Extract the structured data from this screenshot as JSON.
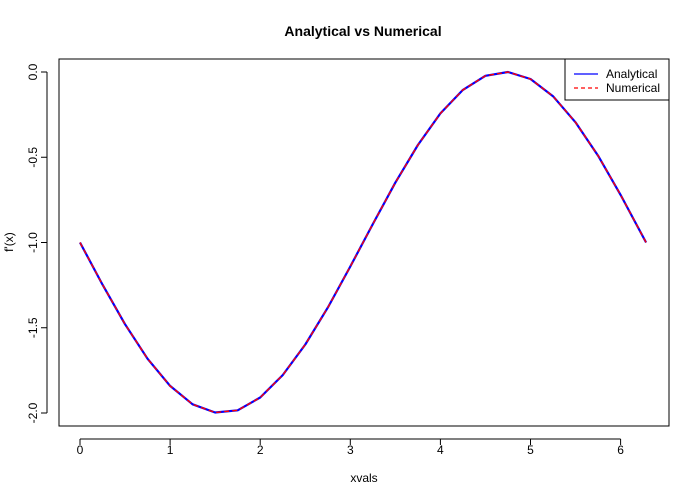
{
  "chart_data": {
    "type": "line",
    "title": "Analytical vs Numerical",
    "xlabel": "xvals",
    "ylabel": "f'(x)",
    "xlim": [
      0.0,
      6.283
    ],
    "ylim": [
      -2.0,
      0.0
    ],
    "x_ticks": [
      0,
      1,
      2,
      3,
      4,
      5,
      6
    ],
    "x_tick_labels": [
      "0",
      "1",
      "2",
      "3",
      "4",
      "5",
      "6"
    ],
    "y_ticks": [
      0.0,
      -0.5,
      -1.0,
      -1.5,
      -2.0
    ],
    "y_tick_labels": [
      "0.0",
      "-0.5",
      "-1.0",
      "-1.5",
      "-2.0"
    ],
    "legend_position": "top-right",
    "series": [
      {
        "name": "Analytical",
        "color": "#0000ff",
        "line_style": "solid",
        "x": [
          0.0,
          0.25,
          0.5,
          0.75,
          1.0,
          1.25,
          1.5,
          1.75,
          2.0,
          2.25,
          2.5,
          2.75,
          3.0,
          3.25,
          3.5,
          3.75,
          4.0,
          4.25,
          4.5,
          4.75,
          5.0,
          5.25,
          5.5,
          5.75,
          6.0,
          6.283
        ],
        "values": [
          -1.0,
          -1.247,
          -1.479,
          -1.682,
          -1.841,
          -1.949,
          -1.997,
          -1.984,
          -1.909,
          -1.778,
          -1.598,
          -1.382,
          -1.141,
          -0.892,
          -0.649,
          -0.428,
          -0.243,
          -0.105,
          -0.022,
          0.0,
          -0.041,
          -0.142,
          -0.295,
          -0.491,
          -0.721,
          -1.0
        ]
      },
      {
        "name": "Numerical",
        "color": "#ff0000",
        "line_style": "dashed",
        "x": [
          0.0,
          0.25,
          0.5,
          0.75,
          1.0,
          1.25,
          1.5,
          1.75,
          2.0,
          2.25,
          2.5,
          2.75,
          3.0,
          3.25,
          3.5,
          3.75,
          4.0,
          4.25,
          4.5,
          4.75,
          5.0,
          5.25,
          5.5,
          5.75,
          6.0,
          6.283
        ],
        "values": [
          -1.0,
          -1.247,
          -1.479,
          -1.682,
          -1.841,
          -1.949,
          -1.997,
          -1.984,
          -1.909,
          -1.778,
          -1.598,
          -1.382,
          -1.141,
          -0.892,
          -0.649,
          -0.428,
          -0.243,
          -0.105,
          -0.022,
          0.0,
          -0.041,
          -0.142,
          -0.295,
          -0.491,
          -0.721,
          -1.0
        ]
      }
    ]
  }
}
